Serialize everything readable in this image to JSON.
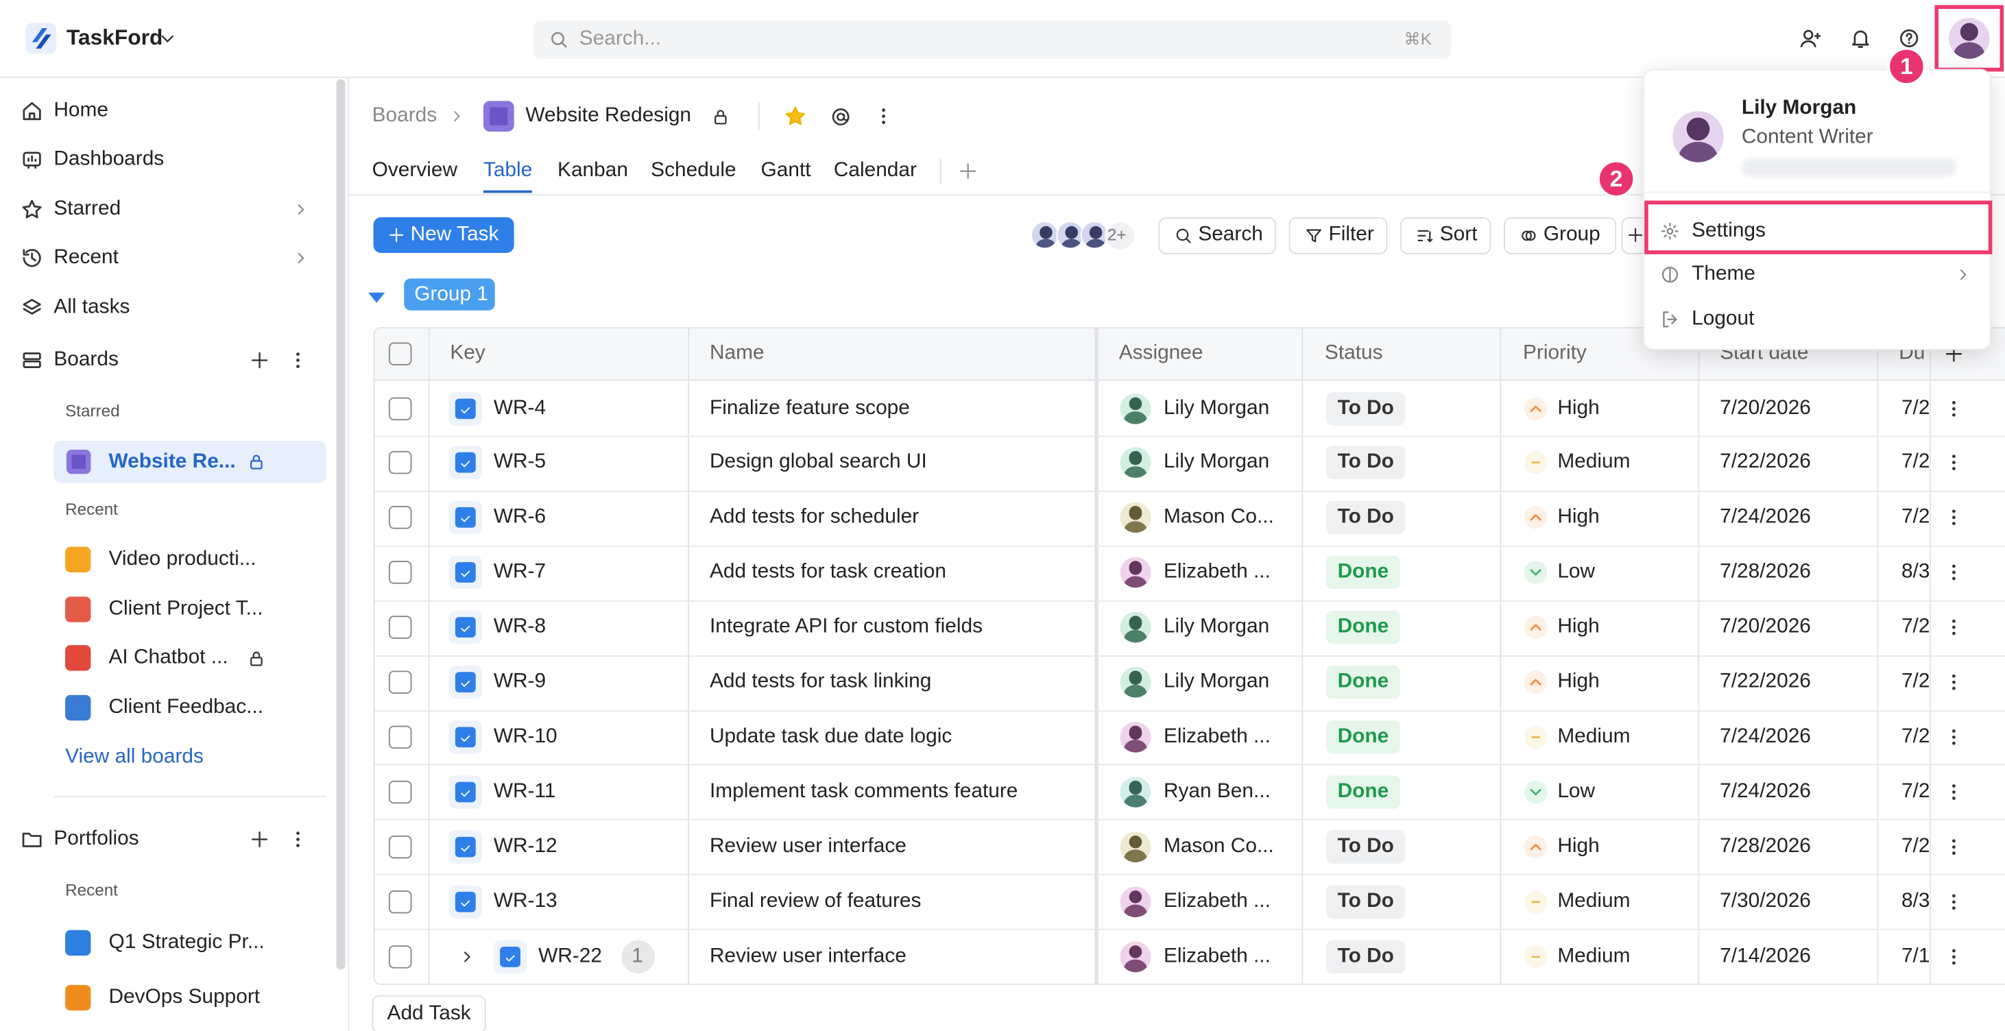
{
  "header": {
    "brand": "TaskFord",
    "search_placeholder": "Search...",
    "shortcut": "⌘K"
  },
  "sidebar": {
    "nav": [
      "Home",
      "Dashboards",
      "Starred",
      "Recent",
      "All tasks"
    ],
    "boards_title": "Boards",
    "starred_label": "Starred",
    "starred_board": "Website Re...",
    "recent_label": "Recent",
    "recent_boards": [
      "Video producti...",
      "Client Project T...",
      "AI Chatbot ...",
      "Client Feedbac..."
    ],
    "view_all": "View all boards",
    "portfolios_title": "Portfolios",
    "portfolios_recent_label": "Recent",
    "portfolios": [
      "Q1 Strategic Pr...",
      "DevOps Support"
    ]
  },
  "breadcrumb": {
    "root": "Boards",
    "board": "Website Redesign"
  },
  "tabs": {
    "items": [
      "Overview",
      "Table",
      "Kanban",
      "Schedule",
      "Gantt",
      "Calendar"
    ],
    "active": 1
  },
  "toolbar": {
    "new_task": "New Task",
    "members_more": "2+",
    "buttons": [
      "Search",
      "Filter",
      "Sort",
      "Group"
    ]
  },
  "group": {
    "label": "Group 1"
  },
  "table": {
    "columns": [
      "Key",
      "Name",
      "Assignee",
      "Status",
      "Priority",
      "Start date",
      "Du"
    ],
    "status_colors": {
      "To Do": {
        "bg": "#eef0f2",
        "fg": "#333333"
      },
      "Done": {
        "bg": "#e6f6ea",
        "fg": "#1e9a4b"
      }
    },
    "priority_colors": {
      "High": "#f08c3a",
      "Medium": "#e8b84a",
      "Low": "#3db36b"
    },
    "rows": [
      {
        "key": "WR-4",
        "name": "Finalize feature scope",
        "assignee": "Lily Morgan",
        "status": "To Do",
        "priority": "High",
        "start": "7/20/2026",
        "due": "7/2"
      },
      {
        "key": "WR-5",
        "name": "Design global search UI",
        "assignee": "Lily Morgan",
        "status": "To Do",
        "priority": "Medium",
        "start": "7/22/2026",
        "due": "7/2"
      },
      {
        "key": "WR-6",
        "name": "Add tests for scheduler",
        "assignee": "Mason Co...",
        "status": "To Do",
        "priority": "High",
        "start": "7/24/2026",
        "due": "7/2"
      },
      {
        "key": "WR-7",
        "name": "Add tests for task creation",
        "assignee": "Elizabeth ...",
        "status": "Done",
        "priority": "Low",
        "start": "7/28/2026",
        "due": "8/3"
      },
      {
        "key": "WR-8",
        "name": "Integrate API for custom fields",
        "assignee": "Lily Morgan",
        "status": "Done",
        "priority": "High",
        "start": "7/20/2026",
        "due": "7/2"
      },
      {
        "key": "WR-9",
        "name": "Add tests for task linking",
        "assignee": "Lily Morgan",
        "status": "Done",
        "priority": "High",
        "start": "7/22/2026",
        "due": "7/2"
      },
      {
        "key": "WR-10",
        "name": "Update task due date logic",
        "assignee": "Elizabeth ...",
        "status": "Done",
        "priority": "Medium",
        "start": "7/24/2026",
        "due": "7/2"
      },
      {
        "key": "WR-11",
        "name": "Implement task comments feature",
        "assignee": "Ryan Ben...",
        "status": "Done",
        "priority": "Low",
        "start": "7/24/2026",
        "due": "7/2"
      },
      {
        "key": "WR-12",
        "name": "Review user interface",
        "assignee": "Mason Co...",
        "status": "To Do",
        "priority": "High",
        "start": "7/28/2026",
        "due": "7/2"
      },
      {
        "key": "WR-13",
        "name": "Final review of features",
        "assignee": "Elizabeth ...",
        "status": "To Do",
        "priority": "Medium",
        "start": "7/30/2026",
        "due": "8/3"
      },
      {
        "key": "WR-22",
        "subtasks": "1",
        "name": "Review user interface",
        "assignee": "Elizabeth ...",
        "status": "To Do",
        "priority": "Medium",
        "start": "7/14/2026",
        "due": "7/1"
      }
    ],
    "add_task": "Add Task"
  },
  "user_menu": {
    "name": "Lily Morgan",
    "role": "Content Writer",
    "items": [
      "Settings",
      "Theme",
      "Logout"
    ]
  },
  "annotations": [
    "1",
    "2"
  ]
}
